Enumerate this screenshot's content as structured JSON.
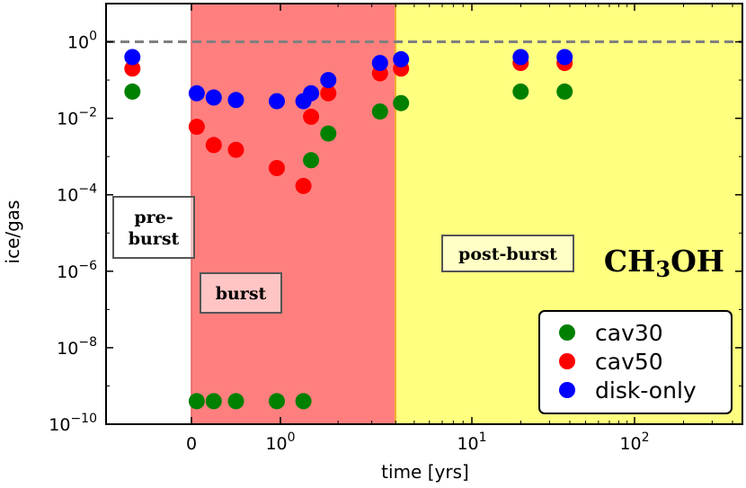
{
  "chart_data": {
    "type": "scatter",
    "species_label": "CH3OH",
    "species_parts": [
      "CH",
      "3",
      "OH"
    ],
    "xlabel": "time [yrs]",
    "ylabel": "ice/gas",
    "yscale": "log",
    "ylim": [
      1e-10,
      10
    ],
    "x_tick_labels": [
      "0",
      "10^0",
      "10^1",
      "10^2"
    ],
    "y_tick_labels": [
      "10^-10",
      "10^-8",
      "10^-6",
      "10^-4",
      "10^-2",
      "10^0"
    ],
    "reference_line": {
      "y": 1,
      "style": "dashed"
    },
    "regions": [
      {
        "name": "pre-burst",
        "label_lines": [
          "pre-",
          "burst"
        ],
        "color": "#ffffff"
      },
      {
        "name": "burst",
        "label_lines": [
          "burst"
        ],
        "color": "#ff7f7f"
      },
      {
        "name": "post-burst",
        "label_lines": [
          "post-burst"
        ],
        "color": "#ffff80"
      }
    ],
    "x_note": "x values are given in axis positions relative to the printed ticks (0 = '0', 1 = '10^0', 2 = '10^1', 3 = '10^2')",
    "series": [
      {
        "name": "cav30",
        "color": "#008000",
        "points": [
          {
            "x": -0.45,
            "y": 0.05
          },
          {
            "x": 0.06,
            "y": 4e-10
          },
          {
            "x": 0.25,
            "y": 4e-10
          },
          {
            "x": 0.5,
            "y": 4e-10
          },
          {
            "x": 0.96,
            "y": 4e-10
          },
          {
            "x": 1.12,
            "y": 4e-10
          },
          {
            "x": 1.16,
            "y": 0.0008
          },
          {
            "x": 1.25,
            "y": 0.004
          },
          {
            "x": 1.52,
            "y": 0.015
          },
          {
            "x": 1.63,
            "y": 0.025
          },
          {
            "x": 2.3,
            "y": 0.05
          },
          {
            "x": 2.57,
            "y": 0.05
          }
        ]
      },
      {
        "name": "cav50",
        "color": "#ff0000",
        "points": [
          {
            "x": -0.45,
            "y": 0.2
          },
          {
            "x": 0.06,
            "y": 0.006
          },
          {
            "x": 0.25,
            "y": 0.002
          },
          {
            "x": 0.5,
            "y": 0.0015
          },
          {
            "x": 0.96,
            "y": 0.0005
          },
          {
            "x": 1.12,
            "y": 0.00017
          },
          {
            "x": 1.16,
            "y": 0.011
          },
          {
            "x": 1.25,
            "y": 0.045
          },
          {
            "x": 1.52,
            "y": 0.15
          },
          {
            "x": 1.63,
            "y": 0.2
          },
          {
            "x": 2.3,
            "y": 0.28
          },
          {
            "x": 2.57,
            "y": 0.28
          }
        ]
      },
      {
        "name": "disk-only",
        "color": "#0000ff",
        "points": [
          {
            "x": -0.45,
            "y": 0.4
          },
          {
            "x": 0.06,
            "y": 0.045
          },
          {
            "x": 0.25,
            "y": 0.035
          },
          {
            "x": 0.5,
            "y": 0.03
          },
          {
            "x": 0.96,
            "y": 0.028
          },
          {
            "x": 1.12,
            "y": 0.028
          },
          {
            "x": 1.16,
            "y": 0.045
          },
          {
            "x": 1.25,
            "y": 0.1
          },
          {
            "x": 1.52,
            "y": 0.28
          },
          {
            "x": 1.63,
            "y": 0.35
          },
          {
            "x": 2.3,
            "y": 0.4
          },
          {
            "x": 2.57,
            "y": 0.4
          }
        ]
      }
    ],
    "legend": {
      "position": "lower-right",
      "entries": [
        "cav30",
        "cav50",
        "disk-only"
      ]
    }
  }
}
